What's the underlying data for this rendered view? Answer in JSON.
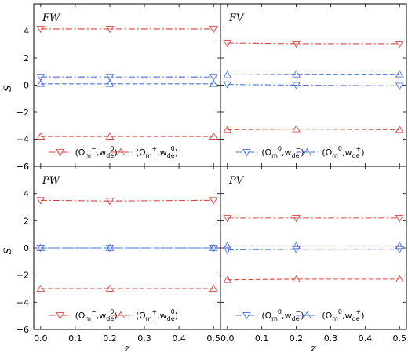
{
  "chart_data": {
    "type": "line",
    "xlabel": "z",
    "ylabel": "S",
    "xlim": [
      -0.02,
      0.52
    ],
    "ylim": [
      -6,
      6
    ],
    "xticks": [
      "0.0",
      "0.1",
      "0.2",
      "0.3",
      "0.4",
      "0.5"
    ],
    "yticks": [
      "−6",
      "−4",
      "−2",
      "0",
      "2",
      "4",
      "6"
    ],
    "colors": {
      "red": "#d6453d",
      "blue": "#4a72d9"
    },
    "panels": [
      {
        "label": "FW",
        "series": [
          {
            "name": "(Ωm−, wde0)",
            "color": "#d6453d",
            "dash": "dashdot",
            "marker": "triangle-down",
            "x": [
              0,
              0.2,
              0.5
            ],
            "values": [
              4.15,
              4.15,
              4.15
            ]
          },
          {
            "name": "(Ωm+, wde0)",
            "color": "#d6453d",
            "dash": "dashed",
            "marker": "triangle-up",
            "x": [
              0,
              0.2,
              0.5
            ],
            "values": [
              -3.8,
              -3.8,
              -3.8
            ]
          },
          {
            "name": "",
            "color": "#4a72d9",
            "dash": "dashdot",
            "marker": "triangle-down",
            "x": [
              0,
              0.2,
              0.5
            ],
            "values": [
              0.6,
              0.6,
              0.6
            ]
          },
          {
            "name": "",
            "color": "#4a72d9",
            "dash": "dashed",
            "marker": "triangle-up",
            "x": [
              0,
              0.2,
              0.5
            ],
            "values": [
              0.1,
              0.1,
              0.1
            ]
          }
        ],
        "legend": [
          {
            "color": "#d6453d",
            "dash": "dashdot",
            "marker": "triangle-down",
            "pre": "(Ω",
            "sub1": "m",
            "sup1": "−",
            "mid": ",w",
            "sub2": "de",
            "sup2": "0",
            "post": ")"
          },
          {
            "color": "#d6453d",
            "dash": "dashed",
            "marker": "triangle-up",
            "pre": "(Ω",
            "sub1": "m",
            "sup1": "+",
            "mid": ",w",
            "sub2": "de",
            "sup2": "0",
            "post": ")"
          }
        ]
      },
      {
        "label": "FV",
        "series": [
          {
            "name": "",
            "color": "#d6453d",
            "dash": "dashdot",
            "marker": "triangle-down",
            "x": [
              0,
              0.2,
              0.5
            ],
            "values": [
              3.1,
              3.05,
              3.05
            ]
          },
          {
            "name": "",
            "color": "#d6453d",
            "dash": "dashed",
            "marker": "triangle-up",
            "x": [
              0,
              0.2,
              0.5
            ],
            "values": [
              -3.3,
              -3.25,
              -3.3
            ]
          },
          {
            "name": "(Ωm0, wde−)",
            "color": "#4a72d9",
            "dash": "dashdot",
            "marker": "triangle-down",
            "x": [
              0,
              0.2,
              0.5
            ],
            "values": [
              0.05,
              0.0,
              -0.05
            ]
          },
          {
            "name": "(Ωm0, wde+)",
            "color": "#4a72d9",
            "dash": "dashed",
            "marker": "triangle-up",
            "x": [
              0,
              0.2,
              0.5
            ],
            "values": [
              0.75,
              0.8,
              0.8
            ]
          }
        ],
        "legend": [
          {
            "color": "#4a72d9",
            "dash": "dashdot",
            "marker": "triangle-down",
            "pre": "(Ω",
            "sub1": "m",
            "sup1": "0",
            "mid": ",w",
            "sub2": "de",
            "sup2": "−",
            "post": ")"
          },
          {
            "color": "#4a72d9",
            "dash": "dashed",
            "marker": "triangle-up",
            "pre": "(Ω",
            "sub1": "m",
            "sup1": "0",
            "mid": ",w",
            "sub2": "de",
            "sup2": "+",
            "post": ")"
          }
        ]
      },
      {
        "label": "PW",
        "series": [
          {
            "name": "(Ωm−, wde0)",
            "color": "#d6453d",
            "dash": "dashdot",
            "marker": "triangle-down",
            "x": [
              0,
              0.2,
              0.5
            ],
            "values": [
              3.5,
              3.45,
              3.5
            ]
          },
          {
            "name": "(Ωm+, wde0)",
            "color": "#d6453d",
            "dash": "dashed",
            "marker": "triangle-up",
            "x": [
              0,
              0.2,
              0.5
            ],
            "values": [
              -3.0,
              -3.0,
              -3.0
            ]
          },
          {
            "name": "",
            "color": "#4a72d9",
            "dash": "dashdot",
            "marker": "triangle-down",
            "x": [
              0,
              0.2,
              0.5
            ],
            "values": [
              0.0,
              0.0,
              0.0
            ]
          },
          {
            "name": "",
            "color": "#4a72d9",
            "dash": "dashed",
            "marker": "triangle-up",
            "x": [
              0,
              0.2,
              0.5
            ],
            "values": [
              0.0,
              0.0,
              0.0
            ]
          }
        ],
        "legend": [
          {
            "color": "#d6453d",
            "dash": "dashdot",
            "marker": "triangle-down",
            "pre": "(Ω",
            "sub1": "m",
            "sup1": "−",
            "mid": ",w",
            "sub2": "de",
            "sup2": "0",
            "post": ")"
          },
          {
            "color": "#d6453d",
            "dash": "dashed",
            "marker": "triangle-up",
            "pre": "(Ω",
            "sub1": "m",
            "sup1": "+",
            "mid": ",w",
            "sub2": "de",
            "sup2": "0",
            "post": ")"
          }
        ]
      },
      {
        "label": "PV",
        "series": [
          {
            "name": "",
            "color": "#d6453d",
            "dash": "dashdot",
            "marker": "triangle-down",
            "x": [
              0,
              0.2,
              0.5
            ],
            "values": [
              2.2,
              2.2,
              2.2
            ]
          },
          {
            "name": "",
            "color": "#d6453d",
            "dash": "dashed",
            "marker": "triangle-up",
            "x": [
              0,
              0.2,
              0.5
            ],
            "values": [
              -2.35,
              -2.3,
              -2.3
            ]
          },
          {
            "name": "(Ωm0, wde−)",
            "color": "#4a72d9",
            "dash": "dashdot",
            "marker": "triangle-down",
            "x": [
              0,
              0.2,
              0.5
            ],
            "values": [
              -0.15,
              -0.1,
              -0.1
            ]
          },
          {
            "name": "(Ωm0, wde+)",
            "color": "#4a72d9",
            "dash": "dashed",
            "marker": "triangle-up",
            "x": [
              0,
              0.2,
              0.5
            ],
            "values": [
              0.15,
              0.15,
              0.15
            ]
          }
        ],
        "legend": [
          {
            "color": "#4a72d9",
            "dash": "dashdot",
            "marker": "triangle-down",
            "pre": "(Ω",
            "sub1": "m",
            "sup1": "0",
            "mid": ",w",
            "sub2": "de",
            "sup2": "−",
            "post": ")"
          },
          {
            "color": "#4a72d9",
            "dash": "dashed",
            "marker": "triangle-up",
            "pre": "(Ω",
            "sub1": "m",
            "sup1": "0",
            "mid": ",w",
            "sub2": "de",
            "sup2": "+",
            "post": ")"
          }
        ]
      }
    ]
  }
}
